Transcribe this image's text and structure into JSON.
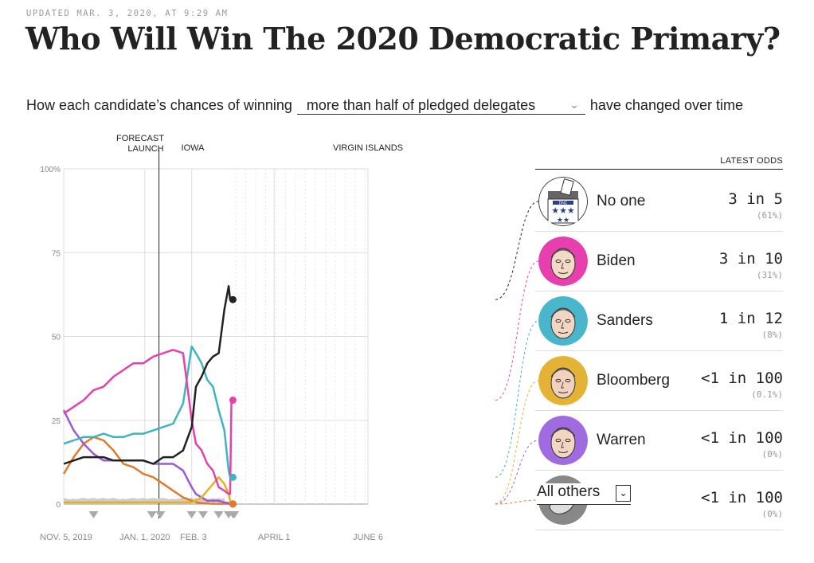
{
  "updated": "UPDATED MAR. 3, 2020, AT 9:29 AM",
  "title": "Who Will Win The 2020 Democratic Primary?",
  "subtitle": {
    "before": "How each candidate’s chances of winning",
    "selected": "more than half of pledged delegates",
    "after": "have changed over time"
  },
  "chart_data": {
    "type": "line",
    "title": "",
    "ylim": [
      0,
      100
    ],
    "yticks": [
      "100%",
      "75",
      "50",
      "25",
      "0"
    ],
    "xtick_labels": [
      "NOV. 5, 2019",
      "JAN. 1, 2020",
      "FEB. 3",
      "APRIL 1",
      "JUNE 6"
    ],
    "events": [
      "FORECAST LAUNCH",
      "IOWA",
      "VIRGIN ISLANDS"
    ],
    "grid": true,
    "x": [
      "2019-11-05",
      "2019-11-12",
      "2019-11-19",
      "2019-11-26",
      "2019-12-03",
      "2019-12-10",
      "2019-12-17",
      "2019-12-24",
      "2019-12-31",
      "2020-01-07",
      "2020-01-14",
      "2020-01-21",
      "2020-01-28",
      "2020-02-03",
      "2020-02-06",
      "2020-02-10",
      "2020-02-14",
      "2020-02-18",
      "2020-02-22",
      "2020-02-26",
      "2020-02-29",
      "2020-03-01",
      "2020-03-02",
      "2020-03-03"
    ],
    "series": [
      {
        "name": "No one",
        "color": "#222222",
        "values": [
          12,
          13,
          14,
          14,
          14,
          13,
          13,
          13,
          13,
          12,
          14,
          14,
          16,
          23,
          35,
          38,
          42,
          44,
          45,
          58,
          65,
          61,
          61,
          61
        ]
      },
      {
        "name": "Biden",
        "color": "#e83faf",
        "values": [
          27,
          29,
          31,
          34,
          35,
          38,
          40,
          42,
          42,
          44,
          45,
          46,
          45,
          25,
          18,
          16,
          12,
          10,
          5,
          4,
          3,
          3,
          31,
          31
        ]
      },
      {
        "name": "Sanders",
        "color": "#3fb3c4",
        "values": [
          18,
          19,
          20,
          20,
          21,
          20,
          20,
          21,
          21,
          22,
          23,
          24,
          30,
          47,
          45,
          42,
          37,
          35,
          28,
          22,
          10,
          8,
          8,
          8
        ]
      },
      {
        "name": "Bloomberg",
        "color": "#e6b020",
        "values": [
          0.5,
          0.5,
          0.5,
          0.5,
          0.5,
          0.5,
          0.5,
          0.5,
          0.5,
          0.5,
          0.5,
          0.5,
          0.5,
          0.5,
          1,
          2,
          4,
          6,
          8,
          6,
          3,
          1,
          0.1,
          0.1
        ]
      },
      {
        "name": "Warren",
        "color": "#9b59d6",
        "values": [
          28,
          22,
          18,
          15,
          13,
          13,
          13,
          13,
          13,
          12,
          12,
          12,
          10,
          5,
          3,
          2,
          1,
          1,
          1,
          0.5,
          0.3,
          0.2,
          0.1,
          0
        ]
      },
      {
        "name": "All others",
        "color": "#e07b2c",
        "values": [
          9,
          14,
          18,
          20,
          19,
          16,
          12,
          11,
          9,
          8,
          6,
          4,
          2,
          1,
          0.5,
          0.3,
          0.2,
          0.1,
          0.1,
          0.1,
          0.1,
          0,
          0,
          0
        ]
      }
    ]
  },
  "table": {
    "header": "LATEST ODDS",
    "rows": [
      {
        "name": "No one",
        "odds": "3 in 5",
        "pct": "(61%)",
        "color": "#222222",
        "avatar_bg": "#ffffff",
        "icon": "ballot-box-icon"
      },
      {
        "name": "Biden",
        "odds": "3 in 10",
        "pct": "(31%)",
        "color": "#e83faf",
        "avatar_bg": "#e83faf",
        "icon": "biden-portrait-icon"
      },
      {
        "name": "Sanders",
        "odds": "1 in 12",
        "pct": "(8%)",
        "color": "#3fb3c4",
        "avatar_bg": "#49b6cc",
        "icon": "sanders-portrait-icon"
      },
      {
        "name": "Bloomberg",
        "odds": "<1 in 100",
        "pct": "(0.1%)",
        "color": "#e6b020",
        "avatar_bg": "#e4b235",
        "icon": "bloomberg-portrait-icon"
      },
      {
        "name": "Warren",
        "odds": "<1 in 100",
        "pct": "(0%)",
        "color": "#9b59d6",
        "avatar_bg": "#a06be0",
        "icon": "warren-portrait-icon"
      },
      {
        "name": "All others",
        "odds": "<1 in 100",
        "pct": "(0%)",
        "color": "#e07b2c",
        "avatar_bg": "#888888",
        "icon": "donkey-icon",
        "is_select": true
      }
    ]
  }
}
